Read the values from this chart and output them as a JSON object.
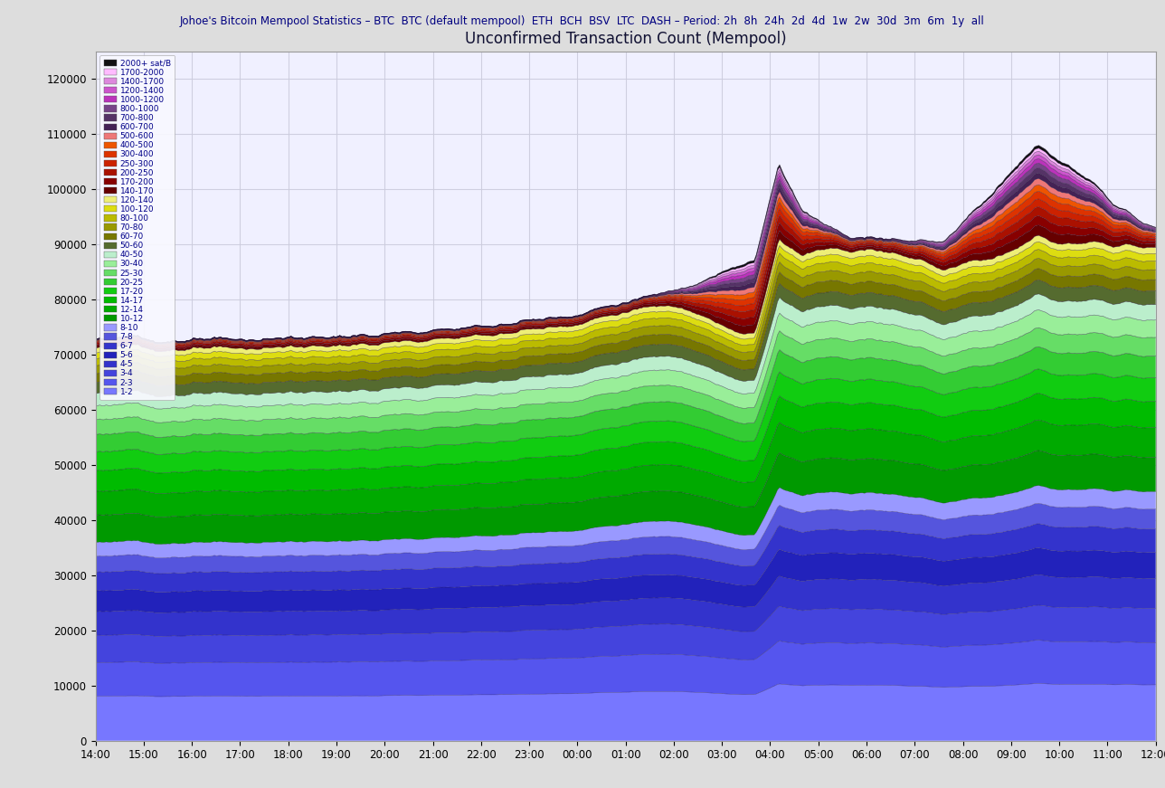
{
  "title": "Unconfirmed Transaction Count (Mempool)",
  "x_ticks": [
    "14:00",
    "15:00",
    "16:00",
    "17:00",
    "18:00",
    "19:00",
    "20:00",
    "21:00",
    "22:00",
    "23:00",
    "00:00",
    "01:00",
    "02:00",
    "03:00",
    "04:00",
    "05:00",
    "06:00",
    "07:00",
    "08:00",
    "09:00",
    "10:00",
    "11:00",
    "12:00"
  ],
  "ylim": [
    0,
    125000
  ],
  "y_ticks": [
    0,
    10000,
    20000,
    30000,
    40000,
    50000,
    60000,
    70000,
    80000,
    90000,
    100000,
    110000,
    120000
  ],
  "plot_bg_color": "#f0f0ff",
  "grid_color": "#ccccdd",
  "fee_bands": [
    {
      "label": "1-2",
      "color": "#7777ff"
    },
    {
      "label": "2-3",
      "color": "#5555ee"
    },
    {
      "label": "3-4",
      "color": "#4444dd"
    },
    {
      "label": "4-5",
      "color": "#3333cc"
    },
    {
      "label": "5-6",
      "color": "#2222bb"
    },
    {
      "label": "6-7",
      "color": "#3333cc"
    },
    {
      "label": "7-8",
      "color": "#5555dd"
    },
    {
      "label": "8-10",
      "color": "#9999ff"
    },
    {
      "label": "10-12",
      "color": "#009900"
    },
    {
      "label": "12-14",
      "color": "#00aa00"
    },
    {
      "label": "14-17",
      "color": "#00bb00"
    },
    {
      "label": "17-20",
      "color": "#11cc11"
    },
    {
      "label": "20-25",
      "color": "#33cc33"
    },
    {
      "label": "25-30",
      "color": "#66dd66"
    },
    {
      "label": "30-40",
      "color": "#99ee99"
    },
    {
      "label": "40-50",
      "color": "#bbeecc"
    },
    {
      "label": "50-60",
      "color": "#556b2f"
    },
    {
      "label": "60-70",
      "color": "#777700"
    },
    {
      "label": "70-80",
      "color": "#999900"
    },
    {
      "label": "80-100",
      "color": "#bbbb00"
    },
    {
      "label": "100-120",
      "color": "#dddd11"
    },
    {
      "label": "120-140",
      "color": "#eeee77"
    },
    {
      "label": "140-170",
      "color": "#660000"
    },
    {
      "label": "170-200",
      "color": "#880000"
    },
    {
      "label": "200-250",
      "color": "#aa1100"
    },
    {
      "label": "250-300",
      "color": "#cc2200"
    },
    {
      "label": "300-400",
      "color": "#dd3300"
    },
    {
      "label": "400-500",
      "color": "#ee5500"
    },
    {
      "label": "500-600",
      "color": "#ee7777"
    },
    {
      "label": "600-700",
      "color": "#442255"
    },
    {
      "label": "700-800",
      "color": "#553366"
    },
    {
      "label": "800-1000",
      "color": "#774488"
    },
    {
      "label": "1000-1200",
      "color": "#bb33bb"
    },
    {
      "label": "1200-1400",
      "color": "#cc55cc"
    },
    {
      "label": "1400-1700",
      "color": "#dd88dd"
    },
    {
      "label": "1700-2000",
      "color": "#ffbbff"
    },
    {
      "label": "2000+ sat/B",
      "color": "#111111"
    }
  ],
  "n_points": 500,
  "waypoints_h": [
    0.0,
    0.5,
    1.0,
    2.0,
    4.0,
    6.0,
    8.0,
    10.0,
    12.0,
    14.0,
    14.5,
    15.0,
    16.0,
    17.0,
    18.0,
    20.0,
    21.0,
    22.0,
    22.5
  ],
  "waypoints_v": [
    73000,
    73200,
    72800,
    72500,
    73000,
    73500,
    75000,
    77000,
    81000,
    87000,
    105000,
    96000,
    91500,
    91000,
    90500,
    108000,
    102000,
    95000,
    93000
  ],
  "noise_std": 600
}
